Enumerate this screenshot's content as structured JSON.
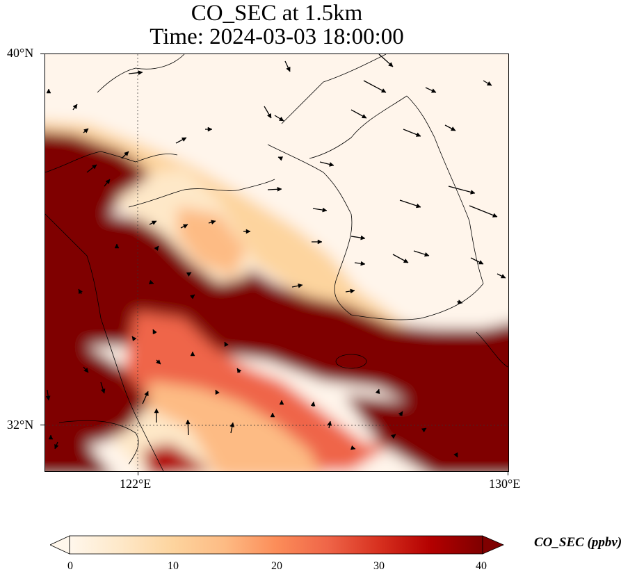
{
  "title": {
    "line1": "CO_SEC at 1.5km",
    "line2": "Time: 2024-03-03 18:00:00"
  },
  "axes": {
    "lat_labels": [
      "40°N",
      "32°N"
    ],
    "lon_labels": [
      "122°E",
      "130°E"
    ]
  },
  "colorbar": {
    "label": "CO_SEC (ppbv)",
    "ticks": [
      "0",
      "10",
      "20",
      "30",
      "40"
    ],
    "range": [
      0,
      40
    ],
    "extend": "both",
    "colormap": "OrRd",
    "colors": [
      "#fff7ec",
      "#fee8c8",
      "#fdd49e",
      "#fdbb84",
      "#fc8d59",
      "#ef6548",
      "#d7301f",
      "#b30000",
      "#7f0000"
    ]
  },
  "map": {
    "extent_lon": [
      120,
      130
    ],
    "extent_lat": [
      31,
      40
    ],
    "gridlines": "dotted",
    "features": [
      "coastlines",
      "wind-vectors",
      "CO concentration field"
    ]
  }
}
